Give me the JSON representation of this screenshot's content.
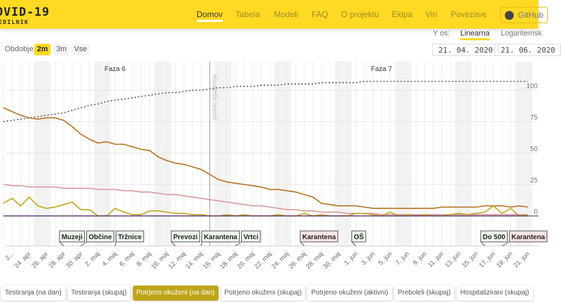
{
  "header": {
    "logo": "OVID-19",
    "logo_sub": "EDILNIK",
    "nav": [
      "Domov",
      "Tabela",
      "Modeli",
      "FAQ",
      "O projektu",
      "Ekipa",
      "Viri",
      "Povezave"
    ],
    "github": "GitHub"
  },
  "yaxis_toggle": {
    "label": "Y os:",
    "linear": "Linearna",
    "log": "Logaritemsk"
  },
  "period": {
    "label": "Obdobje",
    "options": [
      "2m",
      "3m",
      "Vse"
    ],
    "selected": "2m"
  },
  "date_range": {
    "from": "21. 04. 2020",
    "to": "21. 06. 2020"
  },
  "tabs": [
    "Testiranja (na dan)",
    "Testiranja (skupaj)",
    "Potrjeno okuženi (na dan)",
    "Potrjeno okuženi (skupaj)",
    "Potrjeno okuženi (aktivni)",
    "Preboleli (skupaj)",
    "Hospitalizirani (skupaj)"
  ],
  "active_tab": "Potrjeno okuženi (na dan)",
  "chart_data": {
    "type": "line",
    "x_start": "21. apr",
    "xticks": [
      "2...",
      "24. apr",
      "26. apr",
      "28. apr",
      "30. apr",
      "2. maj",
      "4. maj",
      "6. maj",
      "8. maj",
      "10. maj",
      "12. maj",
      "14. maj",
      "16. maj",
      "18. maj",
      "20. maj",
      "22. maj",
      "24. maj",
      "26. maj",
      "28. maj",
      "30. maj",
      "1. jun",
      "3. jun",
      "5. jun",
      "7. jun",
      "9. jun",
      "11. jun",
      "13. jun",
      "15. jun",
      "17. jun",
      "19. jun",
      "21. jun"
    ],
    "xtick_days": [
      1,
      3,
      5,
      7,
      9,
      11,
      13,
      15,
      17,
      19,
      21,
      23,
      25,
      27,
      29,
      31,
      33,
      35,
      37,
      39,
      41,
      43,
      45,
      47,
      49,
      51,
      53,
      55,
      57,
      59,
      61
    ],
    "yticks": [
      "0",
      "25",
      "50",
      "75",
      "100"
    ],
    "ytick_values": [
      0,
      25,
      50,
      75,
      100
    ],
    "ylim": [
      -25,
      125
    ],
    "phases": [
      {
        "label": "Faza 6",
        "day": 12
      },
      {
        "label": "Faza 7",
        "day": 43
      }
    ],
    "event_line": {
      "label": "preklic epidemije",
      "day": 24
    },
    "annotations": [
      {
        "label": "Muzeji",
        "day": 7,
        "type": "green"
      },
      {
        "label": "Občine",
        "day": 9,
        "type": "green"
      },
      {
        "label": "Tržnice",
        "day": 13,
        "type": "green"
      },
      {
        "label": "Prevozi",
        "day": 20,
        "type": "green"
      },
      {
        "label": "Karantena",
        "day": 23,
        "type": "green"
      },
      {
        "label": "Vrtci",
        "day": 27,
        "type": "green"
      },
      {
        "label": "Karantena",
        "day": 35,
        "type": "red"
      },
      {
        "label": "OŠ",
        "day": 41,
        "type": "green"
      },
      {
        "label": "Do 500",
        "day": 56,
        "type": "green"
      },
      {
        "label": "Karantena",
        "day": 58,
        "type": "red"
      }
    ],
    "series": [
      {
        "name": "cumulative",
        "color": "#555555",
        "dashed": true,
        "values": [
          75,
          76,
          77,
          78,
          79,
          80,
          81,
          82,
          84,
          86,
          88,
          89,
          91,
          92,
          93,
          94,
          95,
          96,
          97,
          98,
          98,
          99,
          100,
          100,
          101,
          102,
          102,
          103,
          103,
          103,
          104,
          104,
          104,
          105,
          105,
          105,
          105,
          106,
          106,
          106,
          106,
          106,
          107,
          107,
          107,
          107,
          107,
          107,
          107,
          107,
          107,
          107,
          107,
          107,
          107,
          107,
          107,
          107,
          107,
          107,
          107,
          107
        ]
      },
      {
        "name": "active",
        "color": "#b5701e",
        "values": [
          86,
          83,
          80,
          78,
          77,
          78,
          78,
          76,
          71,
          65,
          61,
          58,
          59,
          57,
          57,
          55,
          53,
          52,
          47,
          44,
          42,
          41,
          39,
          37,
          33,
          29,
          27,
          26,
          25,
          24,
          23,
          21,
          21,
          20,
          19,
          17,
          15,
          10,
          9,
          8,
          8,
          8,
          7,
          6,
          6,
          6,
          6,
          6,
          6,
          6,
          6,
          7,
          7,
          7,
          7,
          7,
          8,
          8,
          8,
          7,
          8,
          7
        ]
      },
      {
        "name": "hospitalized",
        "color": "#d9989a",
        "values": [
          25,
          24,
          24,
          23,
          23,
          23,
          23,
          22,
          22,
          22,
          22,
          21,
          21,
          21,
          20,
          20,
          19,
          19,
          18,
          17,
          17,
          16,
          15,
          14,
          13,
          12,
          11,
          10,
          9,
          8,
          8,
          7,
          6,
          5,
          5,
          4,
          4,
          3,
          3,
          3,
          2,
          2,
          2,
          2,
          1,
          1,
          1,
          1,
          1,
          1,
          1,
          1,
          1,
          1,
          1,
          1,
          1,
          1,
          1,
          1,
          1,
          1
        ]
      },
      {
        "name": "daily",
        "color": "#bfa41a",
        "values": [
          10,
          14,
          8,
          15,
          8,
          6,
          7,
          9,
          11,
          5,
          5,
          0,
          0,
          6,
          3,
          1,
          1,
          4,
          4,
          3,
          2,
          2,
          1,
          1,
          0,
          0,
          1,
          0,
          1,
          0,
          0,
          0,
          1,
          0,
          0,
          2,
          0,
          1,
          0,
          0,
          0,
          2,
          2,
          1,
          0,
          3,
          0,
          1,
          0,
          1,
          0,
          0,
          1,
          2,
          1,
          2,
          3,
          8,
          2,
          6,
          0,
          1
        ]
      },
      {
        "name": "deaths",
        "color": "#6b3b7a",
        "values": [
          0,
          0,
          0,
          0,
          0,
          0,
          0,
          0,
          0,
          0,
          0,
          0,
          0,
          0,
          0,
          0,
          0,
          0,
          0,
          0,
          0,
          0,
          0,
          0,
          0,
          0,
          0,
          0,
          0,
          0,
          0,
          0,
          0,
          0,
          0,
          0,
          0,
          0,
          0,
          0,
          0,
          0,
          0,
          0,
          0,
          0,
          0,
          0,
          0,
          0,
          0,
          0,
          0,
          0,
          0,
          0,
          0,
          0,
          0,
          0,
          0,
          0
        ]
      }
    ]
  }
}
